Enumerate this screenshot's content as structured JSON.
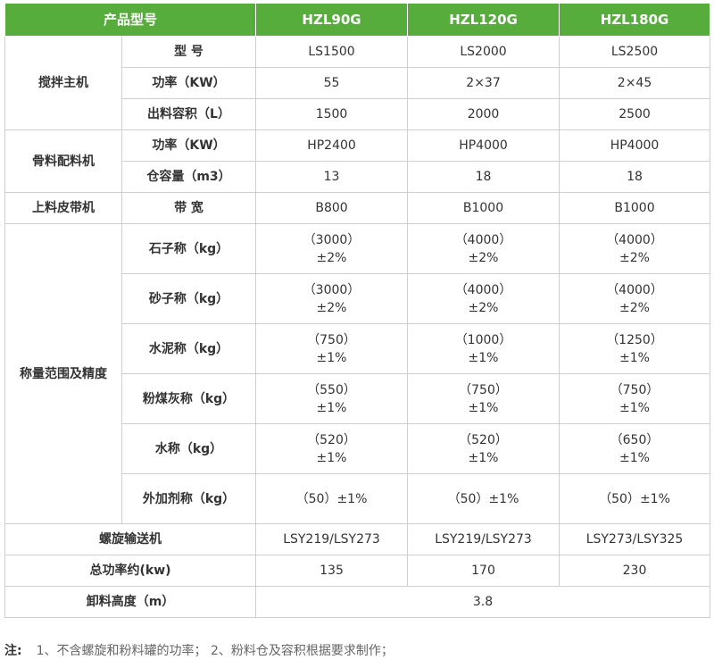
{
  "header": {
    "label": "产品型号",
    "models": [
      "HZL90G",
      "HZL120G",
      "HZL180G"
    ]
  },
  "sections": [
    {
      "category": "搅拌主机",
      "rows": [
        {
          "label": "型 号",
          "values": [
            "LS1500",
            "LS2000",
            "LS2500"
          ]
        },
        {
          "label": "功率（KW）",
          "values": [
            "55",
            "2×37",
            "2×45"
          ]
        },
        {
          "label": "出料容积（L）",
          "values": [
            "1500",
            "2000",
            "2500"
          ]
        }
      ]
    },
    {
      "category": "骨料配料机",
      "rows": [
        {
          "label": "功率（KW）",
          "values": [
            "HP2400",
            "HP4000",
            "HP4000"
          ]
        },
        {
          "label": "仓容量（m3）",
          "values": [
            "13",
            "18",
            "18"
          ]
        }
      ]
    },
    {
      "category": "上料皮带机",
      "rows": [
        {
          "label": "带 宽",
          "values": [
            "B800",
            "B1000",
            "B1000"
          ]
        }
      ]
    },
    {
      "category": "称量范围及精度",
      "rows": [
        {
          "label": "石子称（kg）",
          "values": [
            [
              "（3000）",
              "±2%"
            ],
            [
              "（4000）",
              "±2%"
            ],
            [
              "（4000）",
              "±2%"
            ]
          ]
        },
        {
          "label": "砂子称（kg）",
          "values": [
            [
              "（3000）",
              "±2%"
            ],
            [
              "（4000）",
              "±2%"
            ],
            [
              "（4000）",
              "±2%"
            ]
          ]
        },
        {
          "label": "水泥称（kg）",
          "values": [
            [
              "（750）",
              "±1%"
            ],
            [
              "（1000）",
              "±1%"
            ],
            [
              "（1250）",
              "±1%"
            ]
          ]
        },
        {
          "label": "粉煤灰称（kg）",
          "values": [
            [
              "（550）",
              "±1%"
            ],
            [
              "（750）",
              "±1%"
            ],
            [
              "（750）",
              "±1%"
            ]
          ]
        },
        {
          "label": "水称（kg）",
          "values": [
            [
              "（520）",
              "±1%"
            ],
            [
              "（520）",
              "±1%"
            ],
            [
              "（650）",
              "±1%"
            ]
          ]
        },
        {
          "label": "外加剂称（kg）",
          "values": [
            "（50）±1%",
            "（50）±1%",
            "（50）±1%"
          ]
        }
      ]
    }
  ],
  "footer_rows": [
    {
      "label": "螺旋输送机",
      "values": [
        "LSY219/LSY273",
        "LSY219/LSY273",
        "LSY273/LSY325"
      ]
    },
    {
      "label": "总功率约(kw)",
      "values": [
        "135",
        "170",
        "230"
      ]
    },
    {
      "label": "卸料高度（m）",
      "merged_value": "3.8"
    }
  ],
  "note": {
    "label": "注:",
    "text": "1、不含螺旋和粉料罐的功率；  2、粉料仓及容积根据要求制作；"
  },
  "colors": {
    "header_bg": "#56ad3c",
    "border": "#cfcfcf"
  }
}
